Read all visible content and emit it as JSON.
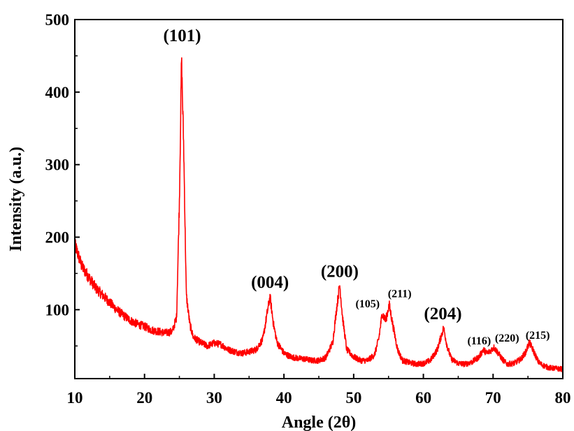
{
  "chart_data": {
    "type": "line",
    "title": "",
    "xlabel": "Angle (2θ)",
    "ylabel": "Intensity (a.u.)",
    "xlim": [
      10,
      80
    ],
    "ylim": [
      5,
      500
    ],
    "xticks": [
      10,
      20,
      30,
      40,
      50,
      60,
      70,
      80
    ],
    "yticks": [
      100,
      200,
      300,
      400,
      500
    ],
    "grid": false,
    "line_color": "#ff0000",
    "series": [
      {
        "x": [
          10,
          11,
          12,
          13,
          14,
          15,
          16,
          17,
          18,
          19,
          20,
          21,
          22,
          23,
          24,
          24.6,
          25.0,
          25.3,
          25.6,
          26.0,
          26.5,
          27,
          28,
          29,
          30,
          31,
          32,
          33,
          34,
          35,
          36,
          37,
          37.5,
          38.0,
          38.5,
          39,
          40,
          41,
          42,
          43,
          44,
          45,
          46,
          47,
          47.6,
          48.0,
          48.4,
          49,
          50,
          51,
          52,
          53,
          53.6,
          54.1,
          54.6,
          55.1,
          55.6,
          56.3,
          57,
          58,
          59,
          60,
          61,
          62,
          62.5,
          62.9,
          63.4,
          64,
          65,
          66,
          67,
          68,
          68.6,
          69.1,
          69.6,
          70.1,
          70.6,
          71.3,
          72,
          73,
          74,
          74.7,
          75.2,
          75.7,
          76.5,
          77,
          78,
          79,
          80
        ],
        "y": [
          190,
          160,
          145,
          130,
          120,
          110,
          100,
          92,
          85,
          80,
          77,
          72,
          70,
          68,
          70,
          90,
          250,
          445,
          330,
          120,
          80,
          62,
          55,
          50,
          54,
          52,
          45,
          42,
          40,
          42,
          45,
          60,
          90,
          118,
          80,
          55,
          40,
          35,
          33,
          32,
          30,
          30,
          34,
          55,
          105,
          135,
          90,
          45,
          35,
          30,
          30,
          38,
          60,
          95,
          85,
          107,
          80,
          45,
          30,
          27,
          25,
          26,
          30,
          45,
          62,
          75,
          50,
          32,
          26,
          25,
          28,
          35,
          45,
          40,
          43,
          48,
          42,
          32,
          25,
          26,
          32,
          42,
          55,
          45,
          28,
          24,
          20,
          19,
          18
        ]
      }
    ],
    "annotations": [
      {
        "text": "(101)",
        "x": 25.4,
        "y": 470,
        "size": "large"
      },
      {
        "text": "(004)",
        "x": 38.0,
        "y": 130,
        "size": "large"
      },
      {
        "text": "(200)",
        "x": 48.0,
        "y": 145,
        "size": "large"
      },
      {
        "text": "(105)",
        "x": 52.0,
        "y": 103,
        "size": "small"
      },
      {
        "text": "(211)",
        "x": 56.6,
        "y": 117,
        "size": "small"
      },
      {
        "text": "(204)",
        "x": 62.8,
        "y": 87,
        "size": "large"
      },
      {
        "text": "(116)",
        "x": 68.0,
        "y": 52,
        "size": "small"
      },
      {
        "text": "(220)",
        "x": 72.0,
        "y": 56,
        "size": "small"
      },
      {
        "text": "(215)",
        "x": 76.4,
        "y": 60,
        "size": "small"
      }
    ]
  }
}
